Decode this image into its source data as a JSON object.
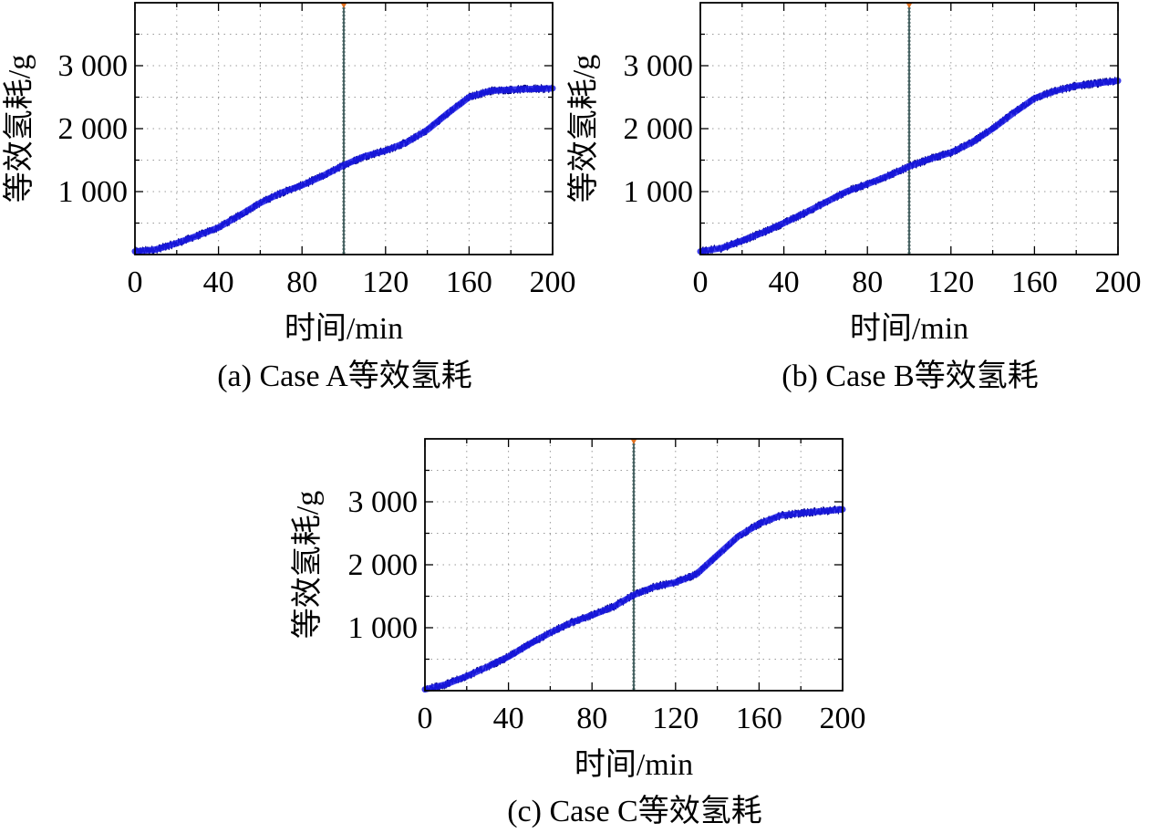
{
  "figure": {
    "colors": {
      "series": "#1a1ae6",
      "series_edge": "#000080",
      "marker": "#2a4a4a",
      "marker_tip": "#e07020",
      "grid": "#9a9a9a",
      "axis": "#000000"
    }
  },
  "chart_data": [
    {
      "type": "line",
      "caption": "(a) Case A等效氢耗",
      "xlabel": "时间/min",
      "ylabel": "等效氢耗/g",
      "xlim": [
        0,
        200
      ],
      "ylim": [
        0,
        4000
      ],
      "xticks": [
        0,
        40,
        80,
        120,
        160,
        200
      ],
      "xtick_labels": [
        "0",
        "40",
        "80",
        "120",
        "160",
        "200"
      ],
      "yticks": [
        1000,
        2000,
        3000
      ],
      "ytick_labels": [
        "1 000",
        "2 000",
        "3 000"
      ],
      "grid": true,
      "vline_x": 100,
      "series": [
        {
          "x": [
            0,
            10,
            20,
            30,
            40,
            50,
            60,
            70,
            80,
            90,
            100,
            110,
            120,
            130,
            140,
            150,
            160,
            170,
            180,
            190,
            200
          ],
          "y": [
            50,
            80,
            180,
            300,
            430,
            620,
            820,
            980,
            1100,
            1250,
            1420,
            1560,
            1650,
            1780,
            1980,
            2250,
            2500,
            2600,
            2620,
            2630,
            2640
          ]
        }
      ]
    },
    {
      "type": "line",
      "caption": "(b) Case B等效氢耗",
      "xlabel": "时间/min",
      "ylabel": "等效氢耗/g",
      "xlim": [
        0,
        200
      ],
      "ylim": [
        0,
        4000
      ],
      "xticks": [
        0,
        40,
        80,
        120,
        160,
        200
      ],
      "xtick_labels": [
        "0",
        "40",
        "80",
        "120",
        "160",
        "200"
      ],
      "yticks": [
        1000,
        2000,
        3000
      ],
      "ytick_labels": [
        "1 000",
        "2 000",
        "3 000"
      ],
      "grid": true,
      "vline_x": 100,
      "series": [
        {
          "x": [
            0,
            10,
            20,
            30,
            40,
            50,
            60,
            70,
            80,
            90,
            100,
            110,
            120,
            130,
            140,
            150,
            160,
            170,
            180,
            190,
            200
          ],
          "y": [
            50,
            100,
            220,
            350,
            500,
            660,
            830,
            1000,
            1120,
            1250,
            1400,
            1520,
            1620,
            1780,
            2000,
            2250,
            2480,
            2600,
            2680,
            2720,
            2760
          ]
        }
      ]
    },
    {
      "type": "line",
      "caption": "(c) Case C等效氢耗",
      "xlabel": "时间/min",
      "ylabel": "等效氢耗/g",
      "xlim": [
        0,
        200
      ],
      "ylim": [
        0,
        4000
      ],
      "xticks": [
        0,
        40,
        80,
        120,
        160,
        200
      ],
      "xtick_labels": [
        "0",
        "40",
        "80",
        "120",
        "160",
        "200"
      ],
      "yticks": [
        1000,
        2000,
        3000
      ],
      "ytick_labels": [
        "1 000",
        "2 000",
        "3 000"
      ],
      "grid": true,
      "vline_x": 100,
      "series": [
        {
          "x": [
            0,
            10,
            20,
            30,
            40,
            50,
            60,
            70,
            80,
            90,
            100,
            110,
            120,
            130,
            140,
            150,
            160,
            170,
            180,
            190,
            200
          ],
          "y": [
            20,
            100,
            230,
            380,
            540,
            740,
            920,
            1080,
            1200,
            1330,
            1520,
            1650,
            1720,
            1850,
            2150,
            2450,
            2650,
            2780,
            2820,
            2850,
            2880
          ]
        }
      ]
    }
  ]
}
